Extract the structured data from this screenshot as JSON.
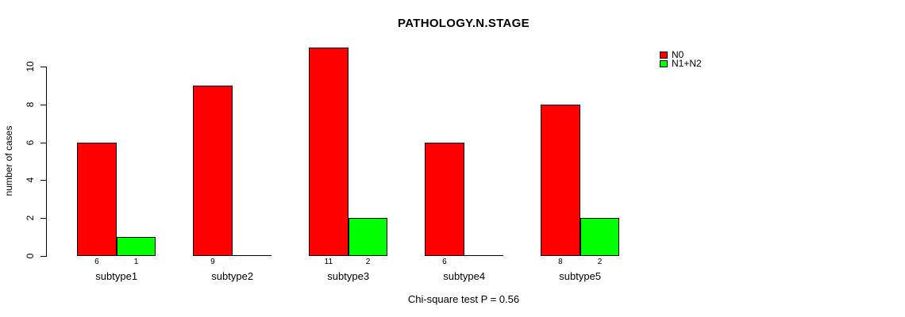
{
  "chart_data": {
    "type": "bar",
    "title": "PATHOLOGY.N.STAGE",
    "xlabel": "",
    "ylabel": "number of cases",
    "categories": [
      "subtype1",
      "subtype2",
      "subtype3",
      "subtype4",
      "subtype5"
    ],
    "series": [
      {
        "name": "N0",
        "color": "#ff0000",
        "values": [
          6,
          9,
          11,
          6,
          8
        ]
      },
      {
        "name": "N1+N2",
        "color": "#00ff00",
        "values": [
          1,
          0,
          2,
          0,
          2
        ]
      }
    ],
    "yticks": [
      0,
      2,
      4,
      6,
      8,
      10
    ],
    "ylim": [
      0,
      10
    ],
    "grid": false,
    "legend_position": "top-right",
    "bar_value_labels": "shown under bars, hidden for zero values",
    "annotation": "Chi-square test P = 0.56"
  }
}
